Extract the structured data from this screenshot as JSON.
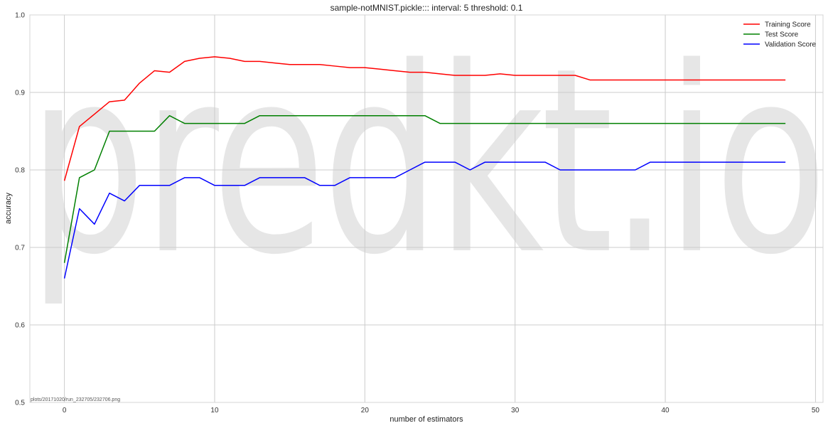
{
  "watermark": "predkt.io",
  "footer": "plots/20171020/run_232705/232706.png",
  "chart_data": {
    "type": "line",
    "title": "sample-notMNIST.pickle::: interval: 5 threshold: 0.1",
    "xlabel": "number of estimators",
    "ylabel": "accuracy",
    "xlim": [
      -2.3,
      50.5
    ],
    "ylim": [
      0.5,
      1.0
    ],
    "xticks": [
      0,
      10,
      20,
      30,
      40,
      50
    ],
    "xtick_labels": [
      "0",
      "10",
      "20",
      "30",
      "40",
      "50"
    ],
    "yticks": [
      0.5,
      0.6,
      0.7,
      0.8,
      0.9,
      1.0
    ],
    "ytick_labels": [
      "0.5",
      "0.6",
      "0.7",
      "0.8",
      "0.9",
      "1.0"
    ],
    "grid": true,
    "legend_position": "top-right",
    "x": [
      0,
      1,
      2,
      3,
      4,
      5,
      6,
      7,
      8,
      9,
      10,
      11,
      12,
      13,
      14,
      15,
      16,
      17,
      18,
      19,
      20,
      21,
      22,
      23,
      24,
      25,
      26,
      27,
      28,
      29,
      30,
      31,
      32,
      33,
      34,
      35,
      36,
      37,
      38,
      39,
      40,
      41,
      42,
      43,
      44,
      45,
      46,
      47,
      48
    ],
    "series": [
      {
        "name": "Training Score",
        "color": "#ff0000",
        "values": [
          0.786,
          0.856,
          0.872,
          0.888,
          0.89,
          0.912,
          0.928,
          0.926,
          0.94,
          0.944,
          0.946,
          0.944,
          0.94,
          0.94,
          0.938,
          0.936,
          0.936,
          0.936,
          0.934,
          0.932,
          0.932,
          0.93,
          0.928,
          0.926,
          0.926,
          0.924,
          0.922,
          0.922,
          0.922,
          0.924,
          0.922,
          0.922,
          0.922,
          0.922,
          0.922,
          0.916,
          0.916,
          0.916,
          0.916,
          0.916,
          0.916,
          0.916,
          0.916,
          0.916,
          0.916,
          0.916,
          0.916,
          0.916,
          0.916
        ]
      },
      {
        "name": "Test Score",
        "color": "#008000",
        "values": [
          0.68,
          0.79,
          0.8,
          0.85,
          0.85,
          0.85,
          0.85,
          0.87,
          0.86,
          0.86,
          0.86,
          0.86,
          0.86,
          0.87,
          0.87,
          0.87,
          0.87,
          0.87,
          0.87,
          0.87,
          0.87,
          0.87,
          0.87,
          0.87,
          0.87,
          0.86,
          0.86,
          0.86,
          0.86,
          0.86,
          0.86,
          0.86,
          0.86,
          0.86,
          0.86,
          0.86,
          0.86,
          0.86,
          0.86,
          0.86,
          0.86,
          0.86,
          0.86,
          0.86,
          0.86,
          0.86,
          0.86,
          0.86,
          0.86
        ]
      },
      {
        "name": "Validation Score",
        "color": "#0000ff",
        "values": [
          0.66,
          0.75,
          0.73,
          0.77,
          0.76,
          0.78,
          0.78,
          0.78,
          0.79,
          0.79,
          0.78,
          0.78,
          0.78,
          0.79,
          0.79,
          0.79,
          0.79,
          0.78,
          0.78,
          0.79,
          0.79,
          0.79,
          0.79,
          0.8,
          0.81,
          0.81,
          0.81,
          0.8,
          0.81,
          0.81,
          0.81,
          0.81,
          0.81,
          0.8,
          0.8,
          0.8,
          0.8,
          0.8,
          0.8,
          0.81,
          0.81,
          0.81,
          0.81,
          0.81,
          0.81,
          0.81,
          0.81,
          0.81,
          0.81
        ]
      }
    ]
  }
}
